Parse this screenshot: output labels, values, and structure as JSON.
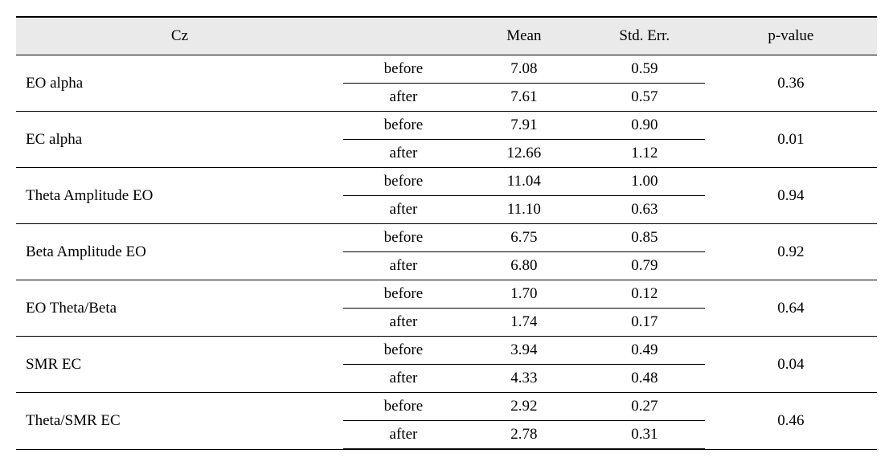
{
  "table": {
    "type": "table",
    "background_color": "#ffffff",
    "header_bg": "#eaeaea",
    "border_color": "#000000",
    "font_family": "Times New Roman",
    "font_size_pt": 15,
    "columns": {
      "label": "Cz",
      "condition": "",
      "mean": "Mean",
      "stderr": "Std. Err.",
      "pvalue": "p-value"
    },
    "condition_labels": {
      "before": "before",
      "after": "after"
    },
    "rows": [
      {
        "label": "EO alpha",
        "before": {
          "mean": "7.08",
          "stderr": "0.59"
        },
        "after": {
          "mean": "7.61",
          "stderr": "0.57"
        },
        "pvalue": "0.36"
      },
      {
        "label": "EC alpha",
        "before": {
          "mean": "7.91",
          "stderr": "0.90"
        },
        "after": {
          "mean": "12.66",
          "stderr": "1.12"
        },
        "pvalue": "0.01"
      },
      {
        "label": "Theta Amplitude EO",
        "before": {
          "mean": "11.04",
          "stderr": "1.00"
        },
        "after": {
          "mean": "11.10",
          "stderr": "0.63"
        },
        "pvalue": "0.94"
      },
      {
        "label": "Beta Amplitude EO",
        "before": {
          "mean": "6.75",
          "stderr": "0.85"
        },
        "after": {
          "mean": "6.80",
          "stderr": "0.79"
        },
        "pvalue": "0.92"
      },
      {
        "label": "EO Theta/Beta",
        "before": {
          "mean": "1.70",
          "stderr": "0.12"
        },
        "after": {
          "mean": "1.74",
          "stderr": "0.17"
        },
        "pvalue": "0.64"
      },
      {
        "label": "SMR EC",
        "before": {
          "mean": "3.94",
          "stderr": "0.49"
        },
        "after": {
          "mean": "4.33",
          "stderr": "0.48"
        },
        "pvalue": "0.04"
      },
      {
        "label": "Theta/SMR EC",
        "before": {
          "mean": "2.92",
          "stderr": "0.27"
        },
        "after": {
          "mean": "2.78",
          "stderr": "0.31"
        },
        "pvalue": "0.46"
      }
    ]
  }
}
